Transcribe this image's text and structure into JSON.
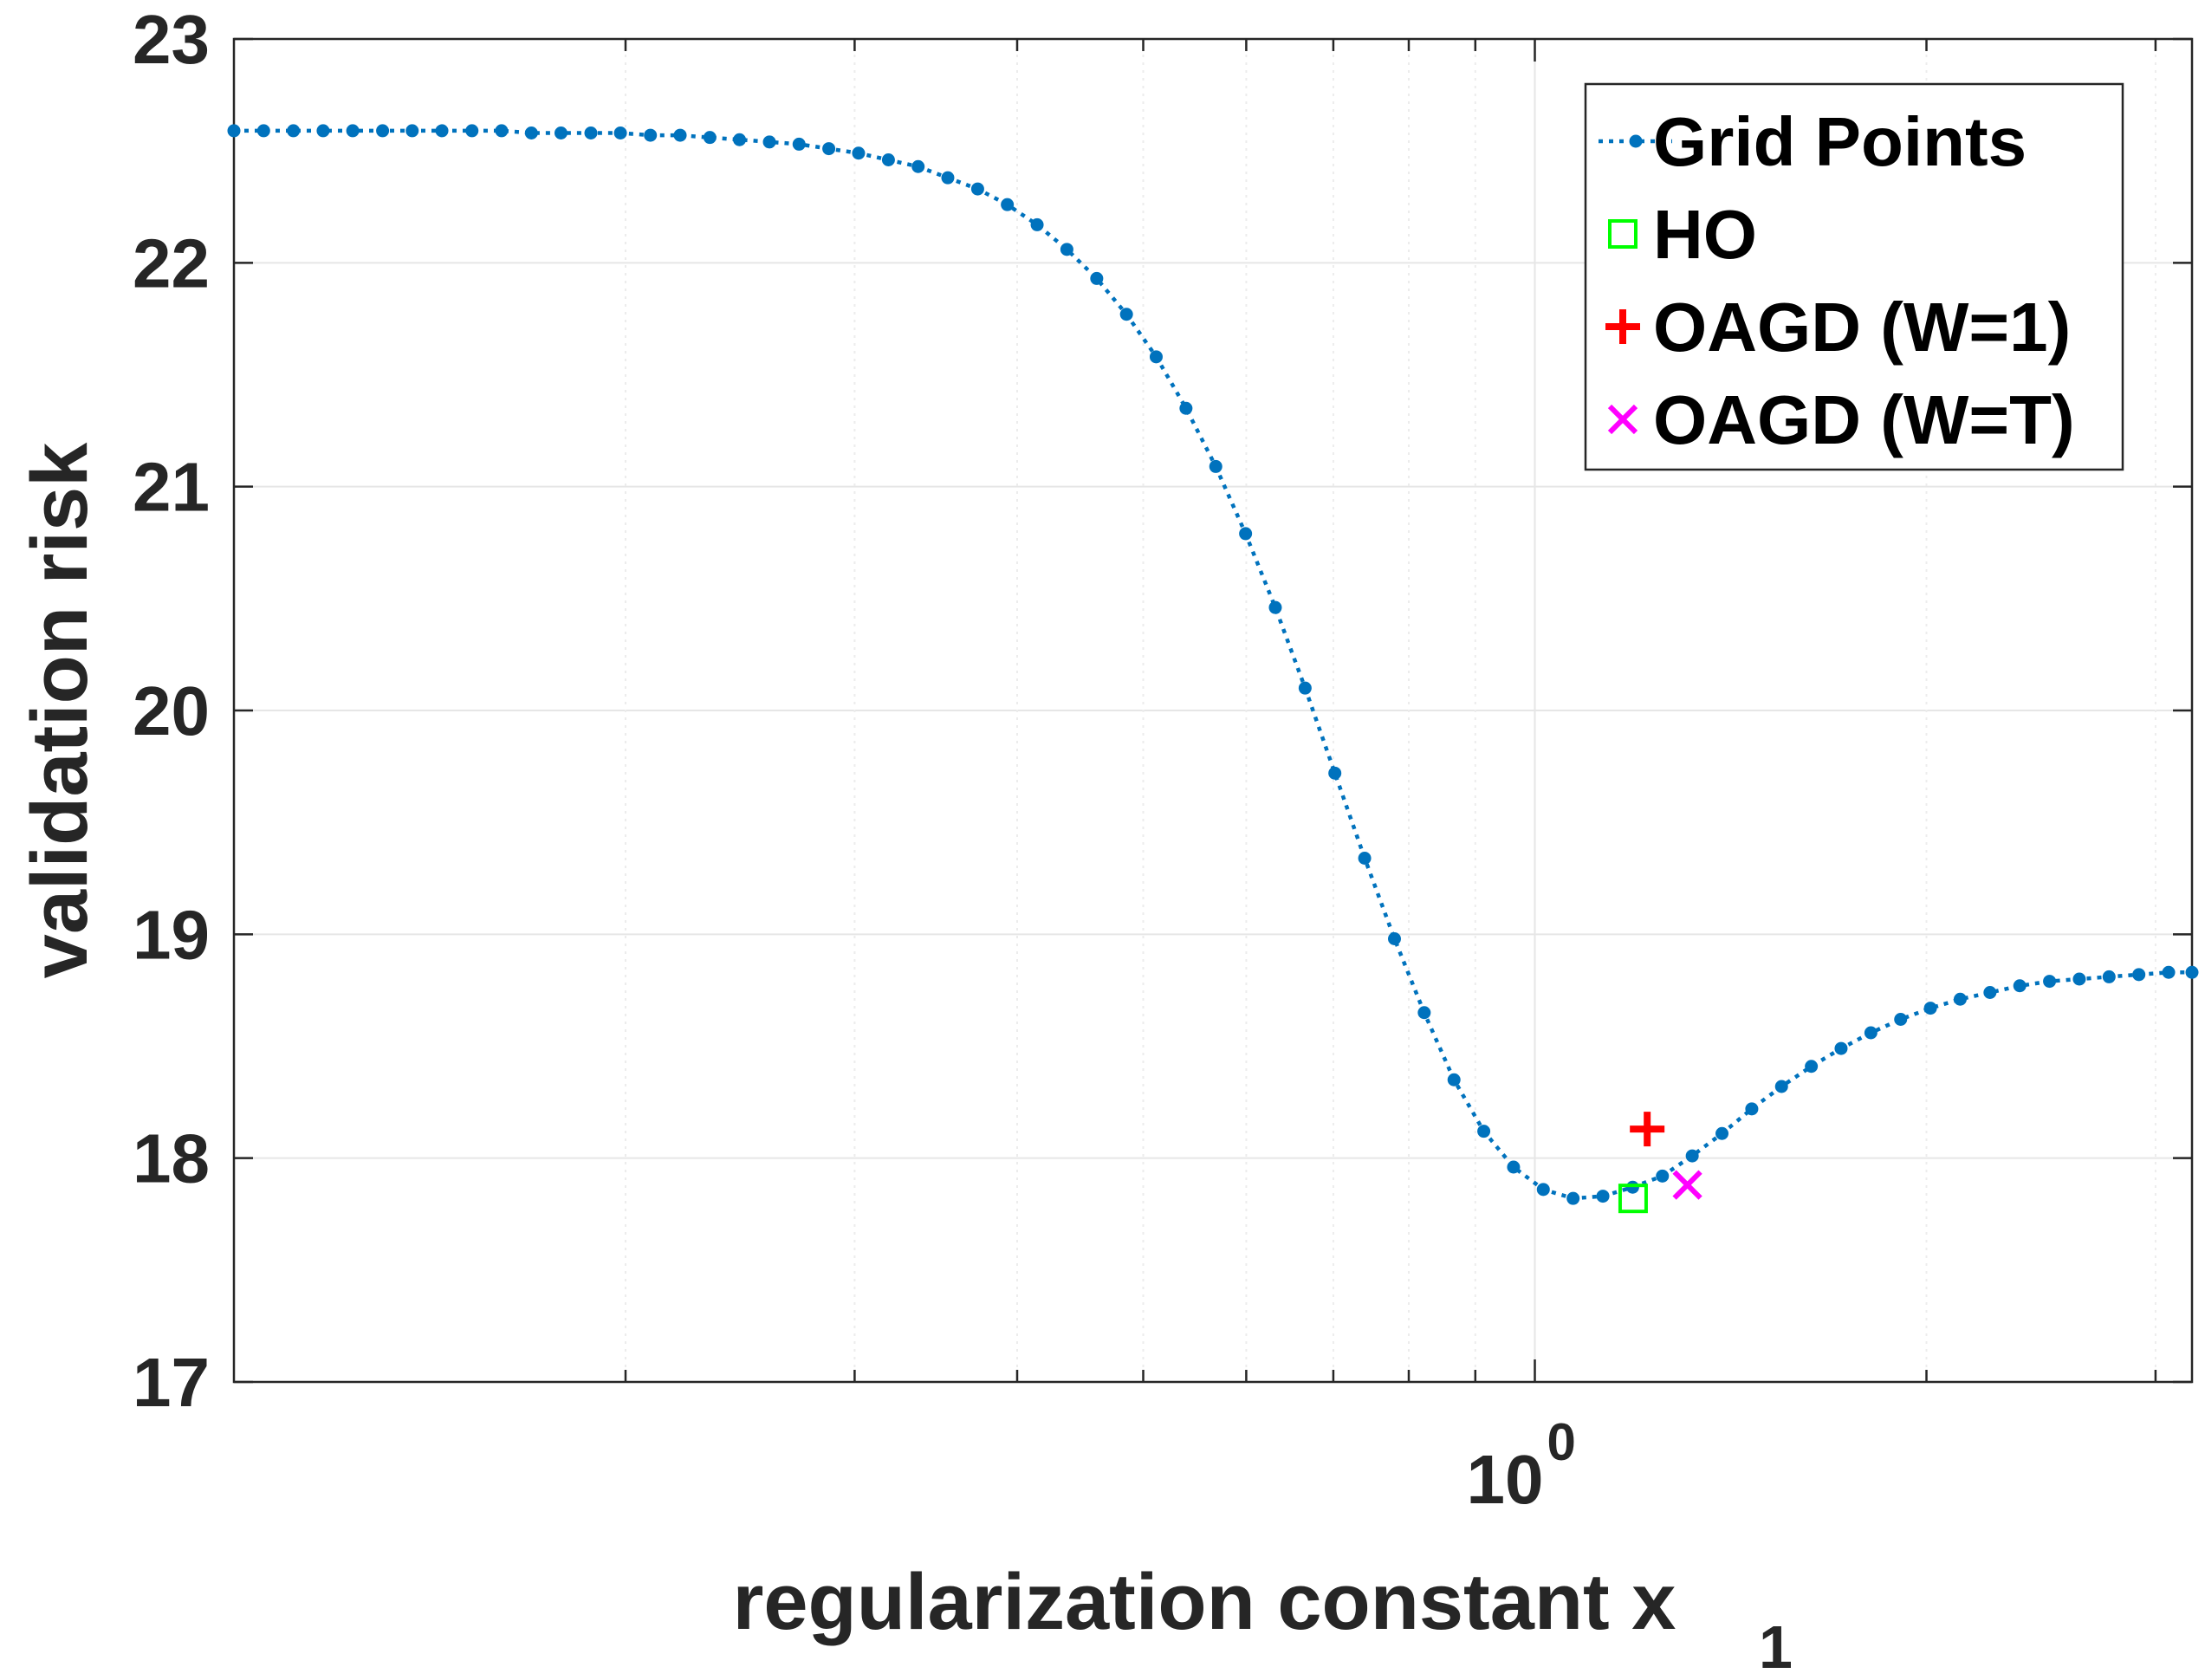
{
  "chart_data": {
    "type": "line",
    "xscale": "log",
    "xlabel": "regularization constant x",
    "xlabel_subscript": "1",
    "ylabel": "validation risk",
    "ylim": [
      17,
      23
    ],
    "yticks": [
      17,
      18,
      19,
      20,
      21,
      22,
      23
    ],
    "ytick_labels": [
      "17",
      "18",
      "19",
      "20",
      "21",
      "22",
      "23"
    ],
    "xlim": [
      0.1,
      3.2
    ],
    "xtick_label": {
      "base": "10",
      "exponent": "0",
      "value": 1
    },
    "minor_xticks": [
      0.2,
      0.3,
      0.4,
      0.5,
      0.6,
      0.7,
      0.8,
      0.9,
      2,
      3
    ],
    "grid": true,
    "legend_position": "top-right",
    "colors": {
      "grid_points": "#0072BD",
      "ho": "#00FF00",
      "oagd_w1": "#FF0000",
      "oagd_wt": "#FF00FF",
      "axis": "#262626"
    },
    "series": [
      {
        "name": "Grid Points",
        "style": "dotted-line-with-dots",
        "x": [
          0.1,
          0.1054,
          0.1111,
          0.1171,
          0.1234,
          0.1301,
          0.1371,
          0.1445,
          0.1524,
          0.1606,
          0.1693,
          0.1784,
          0.1881,
          0.1982,
          0.209,
          0.2203,
          0.2322,
          0.2447,
          0.258,
          0.2719,
          0.2866,
          0.3021,
          0.3185,
          0.3357,
          0.3538,
          0.373,
          0.3931,
          0.4144,
          0.4368,
          0.4605,
          0.4854,
          0.5116,
          0.5393,
          0.5685,
          0.5993,
          0.6317,
          0.6659,
          0.7019,
          0.7399,
          0.78,
          0.8222,
          0.8667,
          0.9136,
          0.963,
          1.0151,
          1.0701,
          1.128,
          1.189,
          1.2533,
          1.3212,
          1.3927,
          1.4681,
          1.5475,
          1.6313,
          1.7195,
          1.8126,
          1.9107,
          2.0141,
          2.1231,
          2.238,
          2.3591,
          2.4868,
          2.6214,
          2.7632,
          2.9128,
          3.0704,
          3.2
        ],
        "y": [
          22.59,
          22.59,
          22.59,
          22.59,
          22.59,
          22.59,
          22.59,
          22.59,
          22.59,
          22.59,
          22.58,
          22.58,
          22.58,
          22.58,
          22.57,
          22.57,
          22.56,
          22.55,
          22.54,
          22.53,
          22.51,
          22.49,
          22.46,
          22.43,
          22.38,
          22.33,
          22.26,
          22.17,
          22.06,
          21.93,
          21.77,
          21.58,
          21.35,
          21.09,
          20.79,
          20.46,
          20.1,
          19.72,
          19.34,
          18.98,
          18.65,
          18.35,
          18.12,
          17.96,
          17.86,
          17.82,
          17.83,
          17.87,
          17.92,
          18.01,
          18.11,
          18.22,
          18.32,
          18.41,
          18.49,
          18.56,
          18.62,
          18.67,
          18.71,
          18.74,
          18.77,
          18.79,
          18.8,
          18.81,
          18.82,
          18.83,
          18.83
        ]
      },
      {
        "name": "HO",
        "style": "square",
        "x": [
          1.19
        ],
        "y": [
          17.82
        ]
      },
      {
        "name": "OAGD (W=1)",
        "style": "plus",
        "x": [
          1.22
        ],
        "y": [
          18.13
        ]
      },
      {
        "name": "OAGD (W=T)",
        "style": "cross",
        "x": [
          1.31
        ],
        "y": [
          17.88
        ]
      }
    ]
  }
}
